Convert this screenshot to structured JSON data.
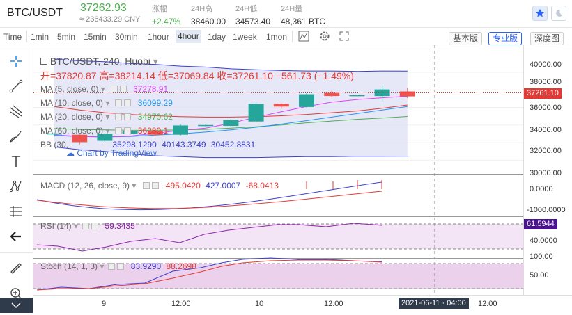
{
  "header": {
    "pair": "BTC/USDT",
    "price": "37262.93",
    "price_cny": "≈ 236433.29 CNY",
    "stats": [
      {
        "label": "涨幅",
        "value": "+2.47%",
        "color": "#4caf50"
      },
      {
        "label": "24H高",
        "value": "38460.00",
        "color": "#333333"
      },
      {
        "label": "24H低",
        "value": "34573.40",
        "color": "#333333"
      },
      {
        "label": "24H量",
        "value": "48,361 BTC",
        "color": "#333333"
      }
    ]
  },
  "toolbar": {
    "intervals": [
      "Time",
      "1min",
      "5min",
      "15min",
      "30min",
      "1hour",
      "4hour",
      "1day",
      "1week",
      "1mon"
    ],
    "active": "4hour",
    "views": [
      "基本版",
      "专业版",
      "深度图"
    ],
    "active_view": "专业版"
  },
  "legend": {
    "title": "BTC/USDT, 240, Huobi",
    "ohlc": "开=37820.87  高=38214.14  低=37069.84  收=37261.10  −561.73 (−1.49%)",
    "ma": [
      {
        "label": "MA (5, close, 0)",
        "value": "37278.91",
        "color": "#e040fb"
      },
      {
        "label": "MA (10, close, 0)",
        "value": "36099.29",
        "color": "#2196f3"
      },
      {
        "label": "MA (20, close, 0)",
        "value": "34970.62",
        "color": "#4caf50"
      },
      {
        "label": "MA (60, close, 0)",
        "value": "36280.1",
        "color": "#e53935"
      }
    ],
    "bb": {
      "label": "BB (30,",
      "v1": "35298.1290",
      "v2": "40143.3749",
      "v3": "30452.8831"
    },
    "watermark": "Chart by TradingView"
  },
  "macd": {
    "label": "MACD (12, 26, close, 9)",
    "v1": "495.0420",
    "v2": "427.0007",
    "v3": "-68.0413"
  },
  "rsi": {
    "label": "RSI (14)",
    "value": "59.3435"
  },
  "stoch": {
    "label": "Stoch (14, 1, 3)",
    "v1": "83.9290",
    "v2": "88.2698"
  },
  "axis": {
    "price": [
      "40000.00",
      "38000.00",
      "36000.00",
      "34000.00",
      "32000.00",
      "30000.00"
    ],
    "current": "37261.10",
    "macd": [
      "0.0000",
      "-1000.0000"
    ],
    "rsi_current": "61.5944",
    "rsi": [
      "40.0000"
    ],
    "stoch": [
      "100.00",
      "50.00"
    ]
  },
  "xaxis": {
    "labels": [
      "9",
      "12:00",
      "10",
      "12:00",
      "12:00"
    ],
    "crosshair": "2021-06-11 · 04:00"
  },
  "chart_data": {
    "type": "candlestick",
    "candles": [
      {
        "o": 32950,
        "h": 33150,
        "l": 32700,
        "c": 33050
      },
      {
        "o": 32900,
        "h": 32950,
        "l": 31800,
        "c": 32050
      },
      {
        "o": 32200,
        "h": 33100,
        "l": 32100,
        "c": 33000
      },
      {
        "o": 33000,
        "h": 33400,
        "l": 32900,
        "c": 33300
      },
      {
        "o": 33300,
        "h": 33350,
        "l": 32700,
        "c": 32900
      },
      {
        "o": 32900,
        "h": 34100,
        "l": 32800,
        "c": 33950
      },
      {
        "o": 33900,
        "h": 34150,
        "l": 33850,
        "c": 34000
      },
      {
        "o": 33900,
        "h": 34700,
        "l": 33800,
        "c": 34550
      },
      {
        "o": 34400,
        "h": 36600,
        "l": 34300,
        "c": 36400
      },
      {
        "o": 36400,
        "h": 36450,
        "l": 35850,
        "c": 36100
      },
      {
        "o": 36050,
        "h": 37600,
        "l": 36000,
        "c": 37500
      },
      {
        "o": 37650,
        "h": 37900,
        "l": 37200,
        "c": 37300
      },
      {
        "o": 37350,
        "h": 37500,
        "l": 37200,
        "c": 37400
      },
      {
        "o": 37300,
        "h": 38500,
        "l": 36650,
        "c": 38050
      },
      {
        "o": 37820.87,
        "h": 38214.14,
        "l": 37069.84,
        "c": 37261.1
      }
    ],
    "ylim": [
      29000,
      41500
    ],
    "bb_upper": [
      41500,
      41300,
      41200,
      41000,
      40900,
      40700,
      40600,
      40400,
      40300,
      40200,
      40150,
      40150,
      40100,
      40150,
      40143
    ],
    "bb_lower": [
      31500,
      31200,
      31000,
      30700,
      30500,
      30400,
      30300,
      30300,
      30300,
      30350,
      30400,
      30400,
      30450,
      30450,
      30452
    ],
    "ma60": [
      36100,
      35700,
      35400,
      35200,
      35050,
      34950,
      34900,
      34900,
      34950,
      35050,
      35200,
      35400,
      35600,
      35900,
      36280
    ],
    "ma20": [
      33600,
      33500,
      33450,
      33400,
      33400,
      33450,
      33500,
      33650,
      33800,
      34000,
      34250,
      34450,
      34650,
      34800,
      34970
    ],
    "ma10": [
      32800,
      32700,
      32650,
      32700,
      32850,
      33000,
      33200,
      33450,
      33750,
      34100,
      34500,
      34900,
      35300,
      35700,
      36099
    ],
    "ma5": [
      32900,
      32700,
      32650,
      32750,
      33050,
      33400,
      33650,
      34200,
      34900,
      35500,
      36100,
      36600,
      36900,
      37100,
      37278
    ]
  }
}
